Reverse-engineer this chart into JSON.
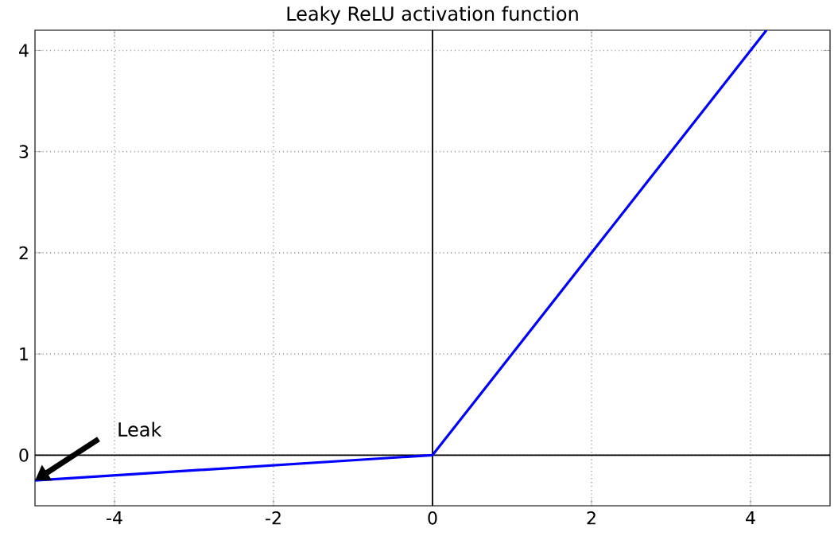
{
  "chart_data": {
    "type": "line",
    "title": "Leaky ReLU activation function",
    "x": [
      -5,
      0,
      4.2
    ],
    "series": [
      {
        "color": "#000000",
        "x": [
          -5,
          5
        ],
        "values": [
          0,
          0
        ]
      },
      {
        "color": "#000000",
        "x": [
          0,
          0
        ],
        "values": [
          -0.5,
          4.2
        ]
      },
      {
        "color": "#0000ff",
        "values": [
          -0.25,
          0,
          4.2
        ]
      }
    ],
    "xlim": [
      -5,
      5
    ],
    "ylim": [
      -0.5,
      4.2
    ],
    "xticks": [
      -4,
      -2,
      0,
      2,
      4
    ],
    "yticks": [
      0,
      1,
      2,
      3,
      4
    ],
    "grid": true,
    "marker": "none",
    "line_style": "solid",
    "annotations": [
      {
        "text": "Leak",
        "x": -5,
        "y": -0.25
      }
    ]
  }
}
